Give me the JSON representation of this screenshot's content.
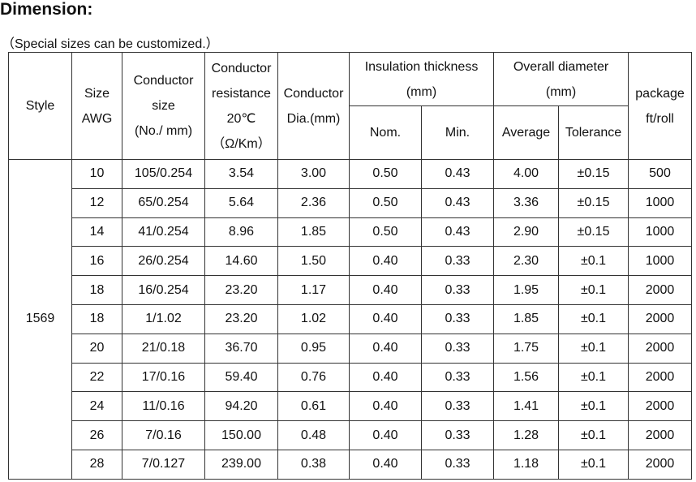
{
  "header": {
    "title": "Dimension:",
    "note": "（Special sizes can be customized.）"
  },
  "table": {
    "columns": [
      {
        "lines": [
          "Style"
        ]
      },
      {
        "lines": [
          "Size",
          "AWG"
        ]
      },
      {
        "lines": [
          "Conductor",
          "size",
          "(No./ mm)"
        ]
      },
      {
        "lines": [
          "Conductor",
          "resistance",
          "20℃",
          "（Ω/Km）"
        ]
      },
      {
        "lines": [
          "Conductor",
          "Dia.(mm)"
        ]
      },
      {
        "lines": [
          "Insulation thickness",
          "(mm)"
        ],
        "sub": [
          "Nom.",
          "Min."
        ]
      },
      {
        "lines": [
          "Overall diameter",
          "(mm)"
        ],
        "sub": [
          "Average",
          "Tolerance"
        ]
      },
      {
        "lines": [
          "package",
          "ft/roll"
        ]
      }
    ],
    "style": "1569",
    "rows": [
      [
        "10",
        "105/0.254",
        "3.54",
        "3.00",
        "0.50",
        "0.43",
        "4.00",
        "±0.15",
        "500"
      ],
      [
        "12",
        "65/0.254",
        "5.64",
        "2.36",
        "0.50",
        "0.43",
        "3.36",
        "±0.15",
        "1000"
      ],
      [
        "14",
        "41/0.254",
        "8.96",
        "1.85",
        "0.50",
        "0.43",
        "2.90",
        "±0.15",
        "1000"
      ],
      [
        "16",
        "26/0.254",
        "14.60",
        "1.50",
        "0.40",
        "0.33",
        "2.30",
        "±0.1",
        "1000"
      ],
      [
        "18",
        "16/0.254",
        "23.20",
        "1.17",
        "0.40",
        "0.33",
        "1.95",
        "±0.1",
        "2000"
      ],
      [
        "18",
        "1/1.02",
        "23.20",
        "1.02",
        "0.40",
        "0.33",
        "1.85",
        "±0.1",
        "2000"
      ],
      [
        "20",
        "21/0.18",
        "36.70",
        "0.95",
        "0.40",
        "0.33",
        "1.75",
        "±0.1",
        "2000"
      ],
      [
        "22",
        "17/0.16",
        "59.40",
        "0.76",
        "0.40",
        "0.33",
        "1.56",
        "±0.1",
        "2000"
      ],
      [
        "24",
        "11/0.16",
        "94.20",
        "0.61",
        "0.40",
        "0.33",
        "1.41",
        "±0.1",
        "2000"
      ],
      [
        "26",
        "7/0.16",
        "150.00",
        "0.48",
        "0.40",
        "0.33",
        "1.28",
        "±0.1",
        "2000"
      ],
      [
        "28",
        "7/0.127",
        "239.00",
        "0.38",
        "0.40",
        "0.33",
        "1.18",
        "±0.1",
        "2000"
      ]
    ]
  }
}
